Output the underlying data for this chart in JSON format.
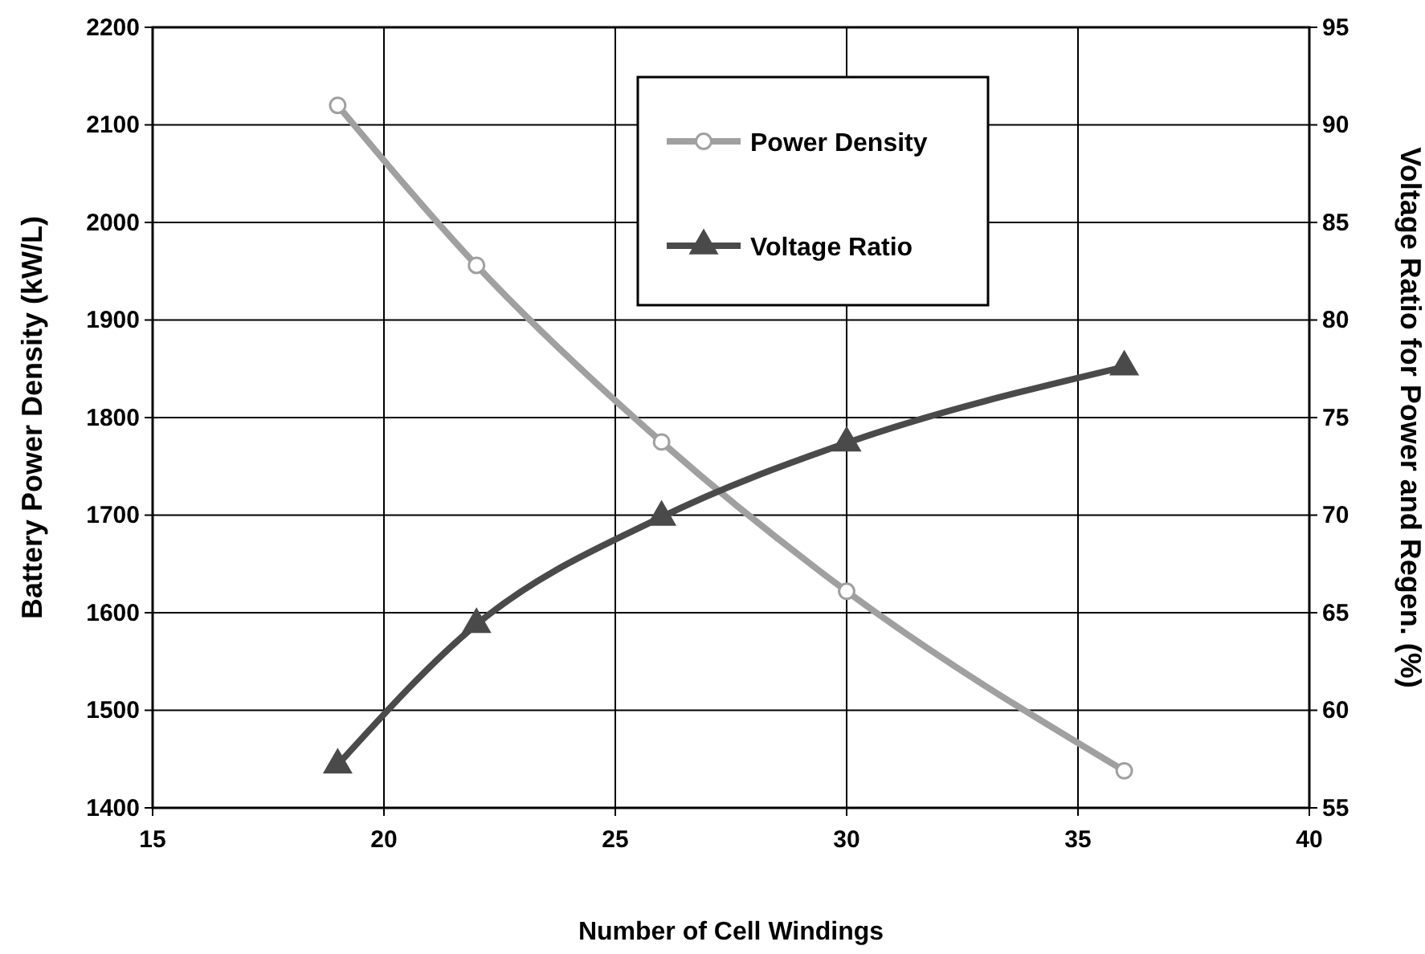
{
  "chart_data": {
    "type": "line",
    "xlabel": "Number of Cell Windings",
    "ylabel": "Battery Power Density (kW/L)",
    "y2label": "Voltage Ratio for Power and Regen. (%)",
    "xlim": [
      15,
      40
    ],
    "xticks": [
      15,
      20,
      25,
      30,
      35,
      40
    ],
    "ylim": [
      1400,
      2200
    ],
    "yticks": [
      1400,
      1500,
      1600,
      1700,
      1800,
      1900,
      2000,
      2100,
      2200
    ],
    "y2lim": [
      55,
      95
    ],
    "y2ticks": [
      55,
      60,
      65,
      70,
      75,
      80,
      85,
      90,
      95
    ],
    "grid": true,
    "legend": "top right",
    "series": [
      {
        "name": "Power Density",
        "color": "#a0a0a0",
        "marker": "circle",
        "x": [
          19,
          22,
          26,
          30,
          36
        ],
        "values": [
          2120,
          1956,
          1775,
          1622,
          1438
        ]
      },
      {
        "name": "Voltage Ratio",
        "color": "#4a4a4a",
        "marker": "triangle",
        "axis": "y2",
        "x": [
          19,
          22,
          26,
          30,
          36
        ],
        "values": [
          57.2,
          64.4,
          69.9,
          73.7,
          77.6
        ]
      }
    ]
  }
}
